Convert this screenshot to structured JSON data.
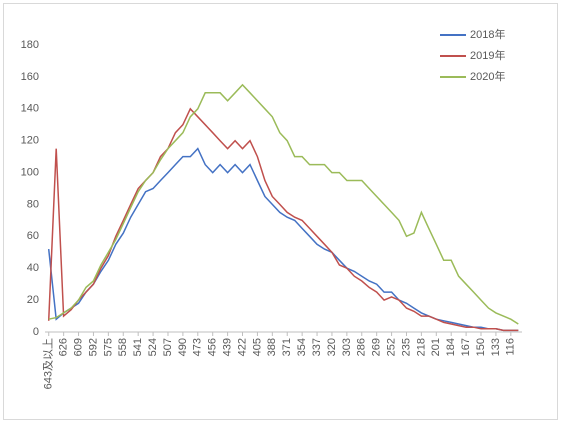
{
  "chart_data": {
    "type": "line",
    "categories": [
      "643及以上",
      null,
      "626",
      null,
      "609",
      null,
      "592",
      null,
      "575",
      null,
      "558",
      null,
      "541",
      null,
      "524",
      null,
      "507",
      null,
      "490",
      null,
      "473",
      null,
      "456",
      null,
      "439",
      null,
      "422",
      null,
      "405",
      null,
      "388",
      null,
      "371",
      null,
      "354",
      null,
      "337",
      null,
      "320",
      null,
      "303",
      null,
      "286",
      null,
      "269",
      null,
      "252",
      null,
      "235",
      null,
      "218",
      null,
      "201",
      null,
      "184",
      null,
      "167",
      null,
      "150",
      null,
      "133",
      null,
      "116",
      null
    ],
    "series": [
      {
        "name": "2018年",
        "color": "#4472c4",
        "values": [
          52,
          8,
          12,
          15,
          18,
          25,
          30,
          38,
          45,
          55,
          62,
          72,
          80,
          88,
          90,
          95,
          100,
          105,
          110,
          110,
          115,
          105,
          100,
          105,
          100,
          105,
          100,
          105,
          95,
          85,
          80,
          75,
          72,
          70,
          65,
          60,
          55,
          52,
          50,
          45,
          40,
          38,
          35,
          32,
          30,
          25,
          25,
          20,
          18,
          15,
          12,
          10,
          8,
          7,
          6,
          5,
          4,
          3,
          3,
          2,
          2,
          1,
          1,
          1
        ]
      },
      {
        "name": "2019年",
        "color": "#c0504d",
        "values": [
          7,
          115,
          10,
          14,
          20,
          25,
          30,
          40,
          48,
          60,
          70,
          80,
          90,
          95,
          100,
          110,
          115,
          125,
          130,
          140,
          135,
          130,
          125,
          120,
          115,
          120,
          115,
          120,
          110,
          95,
          85,
          80,
          75,
          72,
          70,
          65,
          60,
          55,
          50,
          42,
          40,
          35,
          32,
          28,
          25,
          20,
          22,
          20,
          15,
          13,
          10,
          10,
          8,
          6,
          5,
          4,
          3,
          3,
          2,
          2,
          2,
          1,
          1,
          1
        ]
      },
      {
        "name": "2020年",
        "color": "#9bbb59",
        "values": [
          8,
          9,
          12,
          15,
          20,
          28,
          32,
          42,
          50,
          58,
          68,
          78,
          88,
          95,
          100,
          108,
          115,
          120,
          125,
          135,
          140,
          150,
          150,
          150,
          145,
          150,
          155,
          150,
          145,
          140,
          135,
          125,
          120,
          110,
          110,
          105,
          105,
          105,
          100,
          100,
          95,
          95,
          95,
          90,
          85,
          80,
          75,
          70,
          60,
          62,
          75,
          65,
          55,
          45,
          45,
          35,
          30,
          25,
          20,
          15,
          12,
          10,
          8,
          5
        ]
      }
    ],
    "ylim": [
      0,
      180
    ],
    "yticks": [
      0,
      20,
      40,
      60,
      80,
      100,
      120,
      140,
      160,
      180
    ],
    "legend": "top-right"
  }
}
